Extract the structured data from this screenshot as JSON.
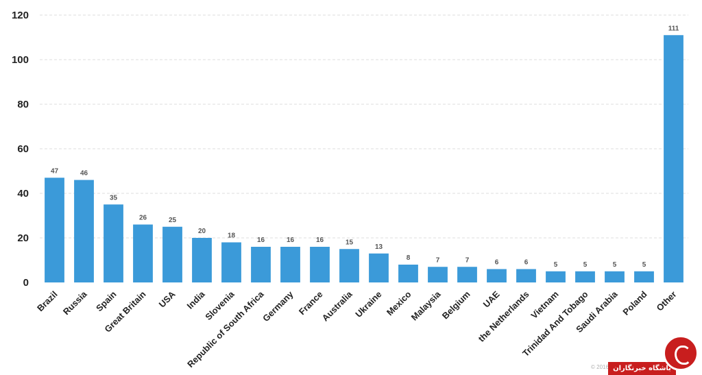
{
  "chart_data": {
    "type": "bar",
    "categories": [
      "Brazil",
      "Russia",
      "Spain",
      "Great Britain",
      "USA",
      "India",
      "Slovenia",
      "Republic of South Africa",
      "Germany",
      "France",
      "Australia",
      "Ukraine",
      "Mexico",
      "Malaysia",
      "Belgium",
      "UAE",
      "the Netherlands",
      "Vietnam",
      "Trinidad And Tobago",
      "Saudi Arabia",
      "Poland",
      "Other"
    ],
    "values": [
      47,
      46,
      35,
      26,
      25,
      20,
      18,
      16,
      16,
      16,
      15,
      13,
      8,
      7,
      7,
      6,
      6,
      5,
      5,
      5,
      5,
      111
    ],
    "data_labels": [
      "47",
      "46",
      "35",
      "26",
      "25",
      "20",
      "18",
      "16",
      "16",
      "16",
      "15",
      "13",
      "8",
      "7",
      "7",
      "6",
      "6",
      "5",
      "5",
      "5",
      "5",
      "111"
    ],
    "yticks": [
      "0",
      "20",
      "40",
      "60",
      "80",
      "100",
      "120"
    ],
    "ylim": [
      0,
      120
    ],
    "grid": true,
    "bar_color": "#3b9ad9"
  },
  "footer": {
    "copyright": "© 2016",
    "watermark_text": "باشگاه خبرنگاران"
  }
}
